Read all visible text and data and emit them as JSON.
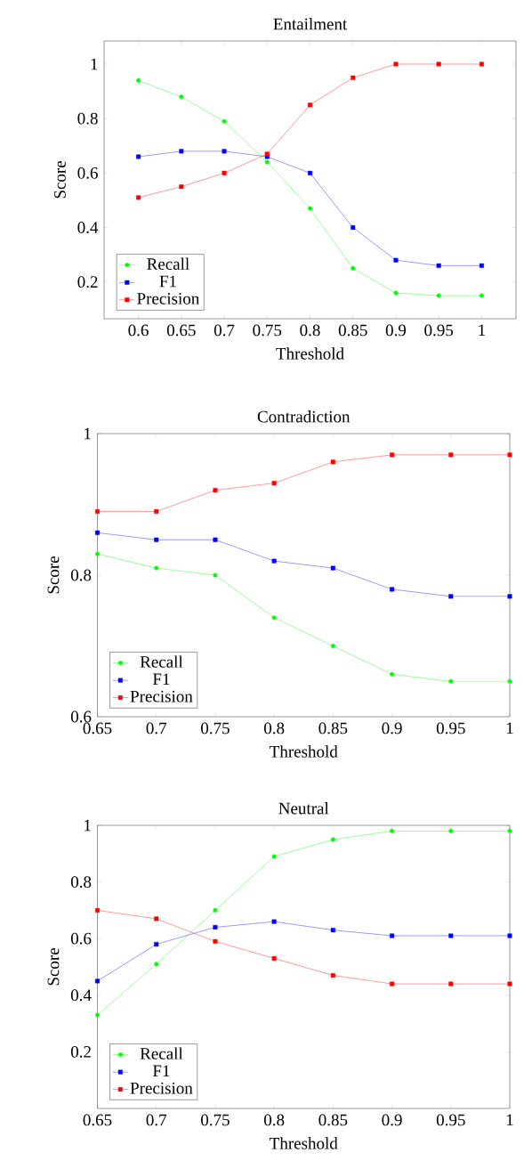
{
  "chart_data": [
    {
      "type": "line",
      "title": "Entailment",
      "xlabel": "Threshold",
      "ylabel": "Score",
      "x": [
        0.6,
        0.65,
        0.7,
        0.75,
        0.8,
        0.85,
        0.9,
        0.95,
        1
      ],
      "xlim": [
        0.56,
        1.04
      ],
      "xticks": [
        0.6,
        0.65,
        0.7,
        0.75,
        0.8,
        0.85,
        0.9,
        0.95,
        1
      ],
      "ylim": [
        0.065,
        1.085
      ],
      "yticks": [
        0.2,
        0.4,
        0.6,
        0.8,
        1
      ],
      "legend": "bottom left",
      "grid": false,
      "series": [
        {
          "name": "Recall",
          "color": "#00ff00",
          "marker": "circle",
          "values": [
            0.94,
            0.88,
            0.79,
            0.64,
            0.47,
            0.25,
            0.16,
            0.15,
            0.15
          ]
        },
        {
          "name": "F1",
          "color": "#0000ff",
          "marker": "square",
          "values": [
            0.66,
            0.68,
            0.68,
            0.66,
            0.6,
            0.4,
            0.28,
            0.26,
            0.26
          ]
        },
        {
          "name": "Precision",
          "color": "#ff0000",
          "marker": "square",
          "values": [
            0.51,
            0.55,
            0.6,
            0.67,
            0.85,
            0.95,
            1,
            1,
            1
          ]
        }
      ]
    },
    {
      "type": "line",
      "title": "Contradiction",
      "xlabel": "Threshold",
      "ylabel": "Score",
      "x": [
        0.65,
        0.7,
        0.75,
        0.8,
        0.85,
        0.9,
        0.95,
        1
      ],
      "xlim": [
        0.65,
        1
      ],
      "xticks": [
        0.65,
        0.7,
        0.75,
        0.8,
        0.85,
        0.9,
        0.95,
        1
      ],
      "ylim": [
        0.6,
        1
      ],
      "yticks": [
        0.6,
        0.8,
        1
      ],
      "legend": "bottom left",
      "grid": false,
      "series": [
        {
          "name": "Recall",
          "color": "#00ff00",
          "marker": "circle",
          "values": [
            0.83,
            0.81,
            0.8,
            0.74,
            0.7,
            0.66,
            0.65,
            0.65
          ]
        },
        {
          "name": "F1",
          "color": "#0000ff",
          "marker": "square",
          "values": [
            0.86,
            0.85,
            0.85,
            0.82,
            0.81,
            0.78,
            0.77,
            0.77
          ]
        },
        {
          "name": "Precision",
          "color": "#ff0000",
          "marker": "square",
          "values": [
            0.89,
            0.89,
            0.92,
            0.93,
            0.96,
            0.97,
            0.97,
            0.97
          ]
        }
      ]
    },
    {
      "type": "line",
      "title": "Neutral",
      "xlabel": "Threshold",
      "ylabel": "Score",
      "x": [
        0.65,
        0.7,
        0.75,
        0.8,
        0.85,
        0.9,
        0.95,
        1
      ],
      "xlim": [
        0.65,
        1
      ],
      "xticks": [
        0.65,
        0.7,
        0.75,
        0.8,
        0.85,
        0.9,
        0.95,
        1
      ],
      "ylim": [
        0,
        1
      ],
      "yticks": [
        0.2,
        0.4,
        0.6,
        0.8,
        1
      ],
      "legend": "bottom left",
      "grid": false,
      "series": [
        {
          "name": "Recall",
          "color": "#00ff00",
          "marker": "circle",
          "values": [
            0.33,
            0.51,
            0.7,
            0.89,
            0.95,
            0.98,
            0.98,
            0.98
          ]
        },
        {
          "name": "F1",
          "color": "#0000ff",
          "marker": "square",
          "values": [
            0.45,
            0.58,
            0.64,
            0.66,
            0.63,
            0.61,
            0.61,
            0.61
          ]
        },
        {
          "name": "Precision",
          "color": "#ff0000",
          "marker": "square",
          "values": [
            0.7,
            0.67,
            0.59,
            0.53,
            0.47,
            0.44,
            0.44,
            0.44
          ]
        }
      ]
    }
  ]
}
